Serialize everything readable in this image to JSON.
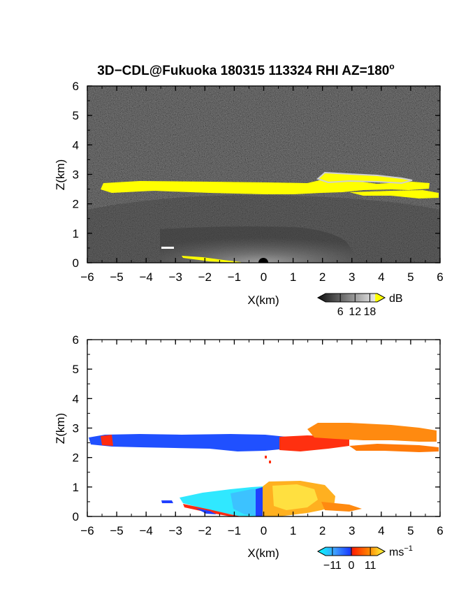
{
  "title": "3D−CDL@Fukuoka 180315 113324 RHI AZ=180",
  "title_degree_mark": "o",
  "chart_data": [
    {
      "type": "heatmap",
      "field": "reflectivity",
      "xlabel": "X(km)",
      "ylabel": "Z(km)",
      "xlim": [
        -6,
        6
      ],
      "ylim": [
        0,
        6
      ],
      "x_ticks": [
        "−6",
        "−5",
        "−4",
        "−3",
        "−2",
        "−1",
        "0",
        "1",
        "2",
        "3",
        "4",
        "5",
        "6"
      ],
      "y_ticks": [
        "0",
        "1",
        "2",
        "3",
        "4",
        "5",
        "6"
      ],
      "colorbar": {
        "unit": "dB",
        "tick_labels": [
          "6",
          "12",
          "18"
        ],
        "tick_values": [
          6,
          12,
          18
        ],
        "range": [
          0,
          21
        ],
        "colors": [
          "#101010",
          "#5a5a5a",
          "#a8a8a8",
          "#e6e6e6",
          "#ffff00"
        ]
      },
      "features": [
        {
          "name": "cloud layer",
          "x": [
            -6.0,
            6.0
          ],
          "z": [
            2.3,
            3.0
          ],
          "value_db": 20
        },
        {
          "name": "boundary-layer clutter",
          "x": [
            -3.5,
            2.5
          ],
          "z": [
            0.0,
            1.1
          ],
          "value_db": 10
        }
      ]
    },
    {
      "type": "heatmap",
      "field": "doppler velocity",
      "xlabel": "X(km)",
      "ylabel": "Z(km)",
      "xlim": [
        -6,
        6
      ],
      "ylim": [
        0,
        6
      ],
      "x_ticks": [
        "−6",
        "−5",
        "−4",
        "−3",
        "−2",
        "−1",
        "0",
        "1",
        "2",
        "3",
        "4",
        "5",
        "6"
      ],
      "y_ticks": [
        "0",
        "1",
        "2",
        "3",
        "4",
        "5",
        "6"
      ],
      "colorbar": {
        "unit": "ms",
        "unit_exponent": "−1",
        "tick_labels": [
          "−11",
          "0",
          "11"
        ],
        "tick_values": [
          -11,
          0,
          11
        ],
        "range": [
          -15,
          15
        ],
        "colors": [
          "#00ffff",
          "#3fa0ff",
          "#1a3cff",
          "#ff2000",
          "#ff8000",
          "#ffff40"
        ]
      },
      "features": [
        {
          "name": "cloud layer west",
          "x": [
            -6.0,
            0.5
          ],
          "z": [
            2.4,
            2.8
          ],
          "velocity_ms": -10
        },
        {
          "name": "cloud layer east",
          "x": [
            0.5,
            6.0
          ],
          "z": [
            2.2,
            3.1
          ],
          "velocity_ms": 8
        },
        {
          "name": "boundary layer west",
          "x": [
            -3.5,
            0.0
          ],
          "z": [
            0.0,
            0.9
          ],
          "velocity_ms": -12
        },
        {
          "name": "boundary layer east",
          "x": [
            0.0,
            3.0
          ],
          "z": [
            0.0,
            1.2
          ],
          "velocity_ms": 10
        }
      ]
    }
  ]
}
